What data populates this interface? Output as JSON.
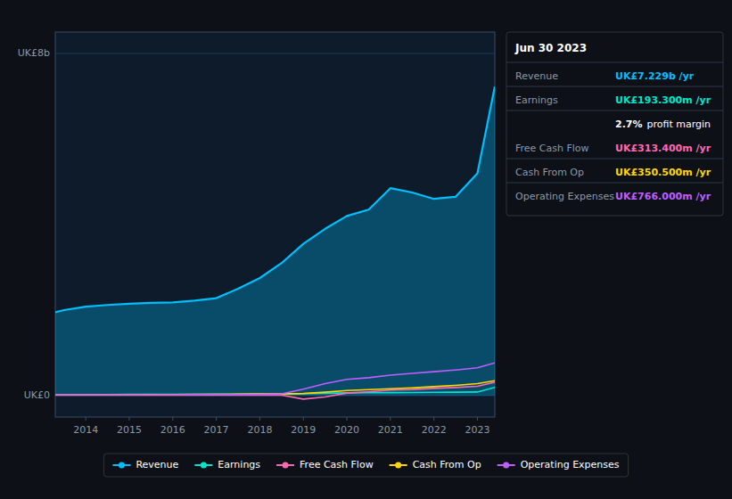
{
  "chart_data": {
    "type": "line",
    "x": [
      2013.3,
      2013.5,
      2014,
      2014.5,
      2015,
      2015.5,
      2016,
      2016.5,
      2017,
      2017.5,
      2018,
      2018.5,
      2019,
      2019.5,
      2020,
      2020.5,
      2021,
      2021.5,
      2022,
      2022.5,
      2023,
      2023.4
    ],
    "series": [
      {
        "name": "Revenue",
        "type": "area",
        "color": "#00bfff",
        "values": [
          1.95,
          2.0,
          2.08,
          2.12,
          2.15,
          2.17,
          2.18,
          2.22,
          2.28,
          2.5,
          2.75,
          3.1,
          3.55,
          3.9,
          4.2,
          4.35,
          4.85,
          4.75,
          4.6,
          4.65,
          5.2,
          7.229
        ]
      },
      {
        "name": "Earnings",
        "color": "#00e5cc",
        "values": [
          0.02,
          0.022,
          0.025,
          0.027,
          0.03,
          0.03,
          0.03,
          0.032,
          0.035,
          0.038,
          0.042,
          0.044,
          0.046,
          0.055,
          0.065,
          0.068,
          0.07,
          0.072,
          0.078,
          0.08,
          0.085,
          0.1933
        ]
      },
      {
        "name": "Free Cash Flow",
        "color": "#ff69b4",
        "values": [
          0.01,
          0.01,
          0.01,
          0.01,
          0.01,
          0.01,
          0.01,
          0.01,
          0.01,
          0.01,
          0.01,
          0.01,
          -0.08,
          -0.03,
          0.06,
          0.09,
          0.13,
          0.14,
          0.17,
          0.19,
          0.22,
          0.3134
        ]
      },
      {
        "name": "Cash From Op",
        "color": "#ffd700",
        "values": [
          0.015,
          0.016,
          0.018,
          0.02,
          0.022,
          0.024,
          0.026,
          0.028,
          0.03,
          0.035,
          0.04,
          0.04,
          0.05,
          0.08,
          0.12,
          0.14,
          0.16,
          0.18,
          0.21,
          0.24,
          0.28,
          0.3505
        ]
      },
      {
        "name": "Operating Expenses",
        "color": "#bf5fff",
        "values": [
          0.02,
          0.02,
          0.02,
          0.02,
          0.02,
          0.022,
          0.022,
          0.024,
          0.025,
          0.025,
          0.03,
          0.04,
          0.15,
          0.28,
          0.38,
          0.42,
          0.48,
          0.52,
          0.56,
          0.6,
          0.65,
          0.766
        ]
      }
    ],
    "xlim": [
      2013.3,
      2023.4
    ],
    "xticks": [
      2014,
      2015,
      2016,
      2017,
      2018,
      2019,
      2020,
      2021,
      2022,
      2023
    ],
    "ylim": [
      -0.5,
      8.5
    ],
    "yticks": [
      {
        "value": 0,
        "label": "UK£0"
      },
      {
        "value": 8,
        "label": "UK£8b"
      }
    ],
    "grid": true,
    "legend": "bottom",
    "annotations": [
      {
        "title": "Jun 30 2023",
        "rows": [
          {
            "label": "Revenue",
            "value": "UK£7.229b /yr",
            "color": "#00bfff"
          },
          {
            "label": "Earnings",
            "value": "UK£193.300m /yr",
            "color": "#00e5cc"
          },
          {
            "value": "2.7%",
            "suffix": "profit margin",
            "color": "#ffffff"
          },
          {
            "label": "Free Cash Flow",
            "value": "UK£313.400m /yr",
            "color": "#ff69b4"
          },
          {
            "label": "Cash From Op",
            "value": "UK£350.500m /yr",
            "color": "#ffd700"
          },
          {
            "label": "Operating Expenses",
            "value": "UK£766.000m /yr",
            "color": "#bf5fff"
          }
        ]
      }
    ]
  }
}
